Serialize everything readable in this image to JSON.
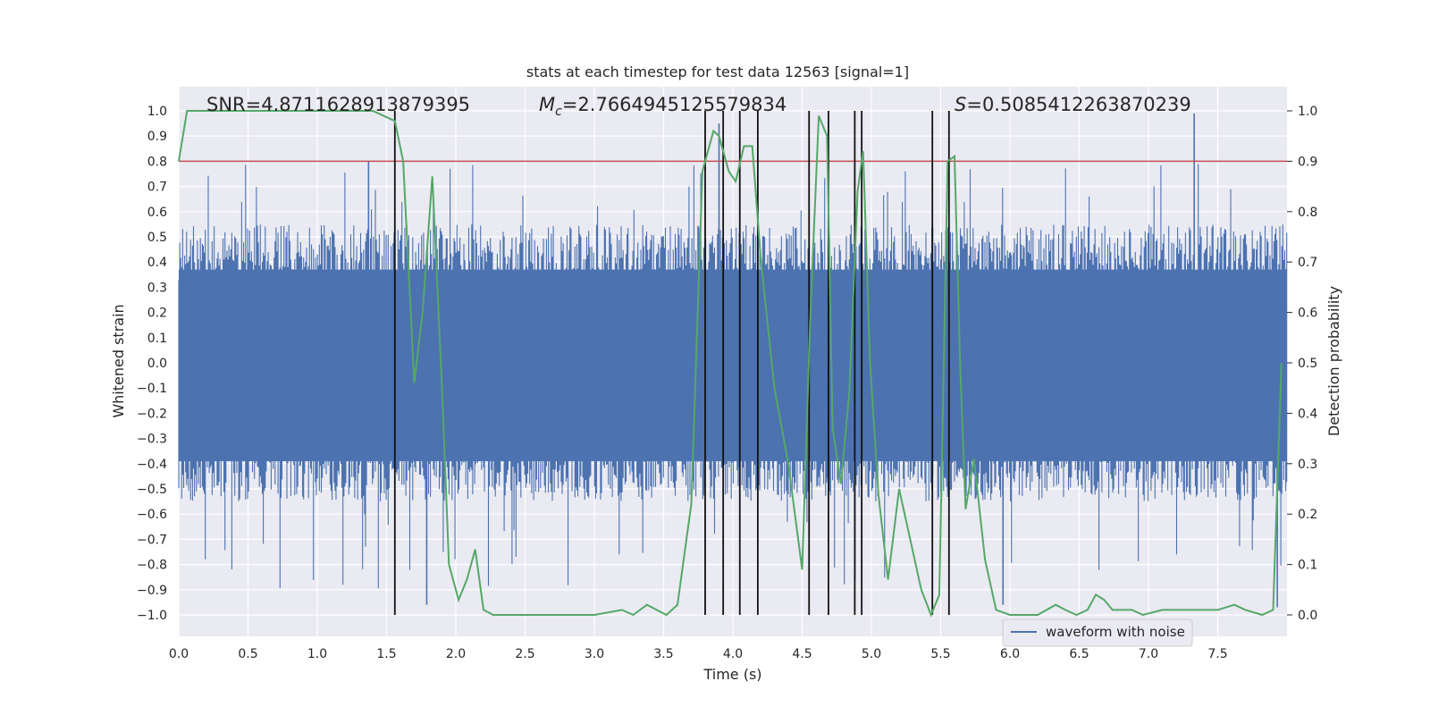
{
  "chart_data": {
    "type": "line",
    "title": "stats at each timestep for test data 12563 [signal=1]",
    "xlabel": "Time (s)",
    "ylabel": "Whitened strain",
    "y2label": "Detection probability",
    "xlim": [
      0.0,
      8.0
    ],
    "ylim": [
      -1.1,
      1.1
    ],
    "y2lim": [
      -0.05,
      1.05
    ],
    "xticks": [
      0.0,
      0.5,
      1.0,
      1.5,
      2.0,
      2.5,
      3.0,
      3.5,
      4.0,
      4.5,
      5.0,
      5.5,
      6.0,
      6.5,
      7.0,
      7.5
    ],
    "xtick_labels": [
      "0.0",
      "0.5",
      "1.0",
      "1.5",
      "2.0",
      "2.5",
      "3.0",
      "3.5",
      "4.0",
      "4.5",
      "5.0",
      "5.5",
      "6.0",
      "6.5",
      "7.0",
      "7.5"
    ],
    "yticks": [
      1.0,
      0.9,
      0.8,
      0.7,
      0.6,
      0.5,
      0.4,
      0.3,
      0.2,
      0.1,
      0.0,
      -0.1,
      -0.2,
      -0.3,
      -0.4,
      -0.5,
      -0.6,
      -0.7,
      -0.8,
      -0.9,
      -1.0
    ],
    "ytick_labels": [
      "1.0",
      "0.9",
      "0.8",
      "0.7",
      "0.6",
      "0.5",
      "0.4",
      "0.3",
      "0.2",
      "0.1",
      "0.0",
      "−0.1",
      "−0.2",
      "−0.3",
      "−0.4",
      "−0.5",
      "−0.6",
      "−0.7",
      "−0.8",
      "−0.9",
      "−1.0"
    ],
    "y2ticks": [
      1.0,
      0.9,
      0.8,
      0.7,
      0.6,
      0.5,
      0.4,
      0.3,
      0.2,
      0.1,
      0.0
    ],
    "y2tick_labels": [
      "1.0",
      "0.9",
      "0.8",
      "0.7",
      "0.6",
      "0.5",
      "0.4",
      "0.3",
      "0.2",
      "0.1",
      "0.0"
    ],
    "annotations": {
      "snr": "SNR=4.8711628913879395",
      "mc_symbol": "M",
      "mc_sub": "c",
      "mc_value": "=2.7664945125579834",
      "s_symbol": "S",
      "s_value": "=0.5085412263870239"
    },
    "threshold": 0.8,
    "grid": true,
    "legend": {
      "entries": [
        "waveform with noise"
      ],
      "location": "lower-right"
    },
    "waveform": {
      "name": "waveform with noise",
      "core_band": [
        -0.39,
        0.37
      ],
      "upper_envelope_typical": 0.55,
      "lower_envelope_typical": -0.55,
      "max_positive": 0.99,
      "min_negative": -0.97,
      "seed": 12563
    },
    "detection_probability": {
      "name": "detection probability",
      "x": [
        0.0,
        0.06,
        0.15,
        0.3,
        0.6,
        1.0,
        1.4,
        1.56,
        1.62,
        1.7,
        1.76,
        1.83,
        1.9,
        1.95,
        2.02,
        2.08,
        2.14,
        2.2,
        2.27,
        2.5,
        3.0,
        3.2,
        3.28,
        3.38,
        3.52,
        3.6,
        3.7,
        3.78,
        3.86,
        3.9,
        3.97,
        4.02,
        4.08,
        4.14,
        4.2,
        4.3,
        4.4,
        4.5,
        4.56,
        4.62,
        4.68,
        4.72,
        4.78,
        4.84,
        4.9,
        4.94,
        4.99,
        5.05,
        5.12,
        5.2,
        5.28,
        5.36,
        5.43,
        5.49,
        5.55,
        5.6,
        5.64,
        5.68,
        5.74,
        5.82,
        5.9,
        6.0,
        6.2,
        6.33,
        6.4,
        6.48,
        6.56,
        6.62,
        6.68,
        6.74,
        6.8,
        6.88,
        6.96,
        7.1,
        7.3,
        7.5,
        7.62,
        7.7,
        7.82,
        7.9,
        7.96
      ],
      "y": [
        0.9,
        1.0,
        1.0,
        1.0,
        1.0,
        1.0,
        1.0,
        0.98,
        0.9,
        0.46,
        0.6,
        0.87,
        0.45,
        0.1,
        0.03,
        0.07,
        0.13,
        0.01,
        0.0,
        0.0,
        0.0,
        0.01,
        0.0,
        0.02,
        0.0,
        0.02,
        0.22,
        0.88,
        0.96,
        0.95,
        0.88,
        0.86,
        0.93,
        0.93,
        0.71,
        0.45,
        0.3,
        0.09,
        0.6,
        0.99,
        0.95,
        0.37,
        0.26,
        0.44,
        0.84,
        0.92,
        0.5,
        0.24,
        0.07,
        0.25,
        0.15,
        0.05,
        0.0,
        0.04,
        0.9,
        0.91,
        0.5,
        0.21,
        0.31,
        0.11,
        0.01,
        0.0,
        0.0,
        0.02,
        0.01,
        0.0,
        0.01,
        0.04,
        0.03,
        0.01,
        0.01,
        0.01,
        0.0,
        0.01,
        0.01,
        0.01,
        0.02,
        0.01,
        0.0,
        0.01,
        0.5
      ]
    },
    "vertical_markers_x": [
      1.56,
      3.8,
      3.93,
      4.05,
      4.18,
      4.55,
      4.69,
      4.88,
      4.93,
      5.44,
      5.56
    ]
  }
}
